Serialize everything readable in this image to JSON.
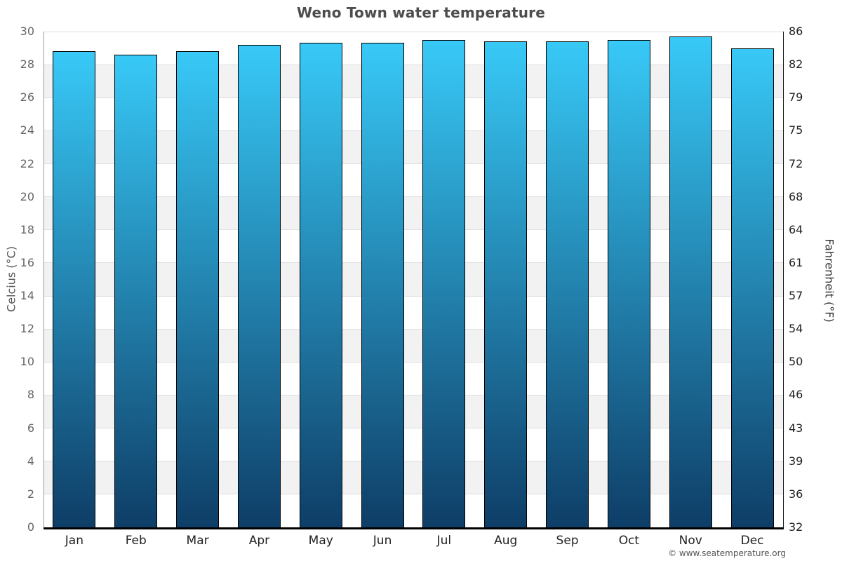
{
  "title": "Weno Town water temperature",
  "watermark": "© www.seatemperature.org",
  "chart_data": {
    "type": "bar",
    "title": "Weno Town water temperature",
    "categories": [
      "Jan",
      "Feb",
      "Mar",
      "Apr",
      "May",
      "Jun",
      "Jul",
      "Aug",
      "Sep",
      "Oct",
      "Nov",
      "Dec"
    ],
    "series": [
      {
        "name": "Water temperature",
        "unit": "°C",
        "values": [
          28.8,
          28.6,
          28.8,
          29.2,
          29.3,
          29.3,
          29.5,
          29.4,
          29.4,
          29.5,
          29.7,
          29.0
        ]
      }
    ],
    "xlabel": "",
    "ylabel_left": "Celcius (°C)",
    "ylabel_right": "Fahrenheit (°F)",
    "ylim": [
      0,
      30
    ],
    "ytick_step_celsius": 2,
    "yticks_celsius": [
      0,
      2,
      4,
      6,
      8,
      10,
      12,
      14,
      16,
      18,
      20,
      22,
      24,
      26,
      28,
      30
    ],
    "yticks_fahrenheit": [
      "32",
      "36",
      "39",
      "43",
      "46",
      "50",
      "54",
      "57",
      "61",
      "64",
      "68",
      "72",
      "75",
      "79",
      "82",
      "86"
    ],
    "grid": true,
    "alternate_bands": true,
    "legend_position": "none",
    "colors": {
      "bar_top": "#38c9f7",
      "bar_bottom": "#0e3e67",
      "bar_border": "#000000",
      "band_alt": "#f2f2f2",
      "gridline": "#dedede",
      "axis_left_line": "#999999",
      "axis_right_line": "#111111",
      "axis_bottom_line": "#000000",
      "tick_label_left": "#666666",
      "tick_label_right": "#222222",
      "month_label": "#222222",
      "title": "#4d4d4d",
      "axis_title_left": "#555555",
      "axis_title_right": "#333333",
      "watermark": "#555555"
    }
  }
}
